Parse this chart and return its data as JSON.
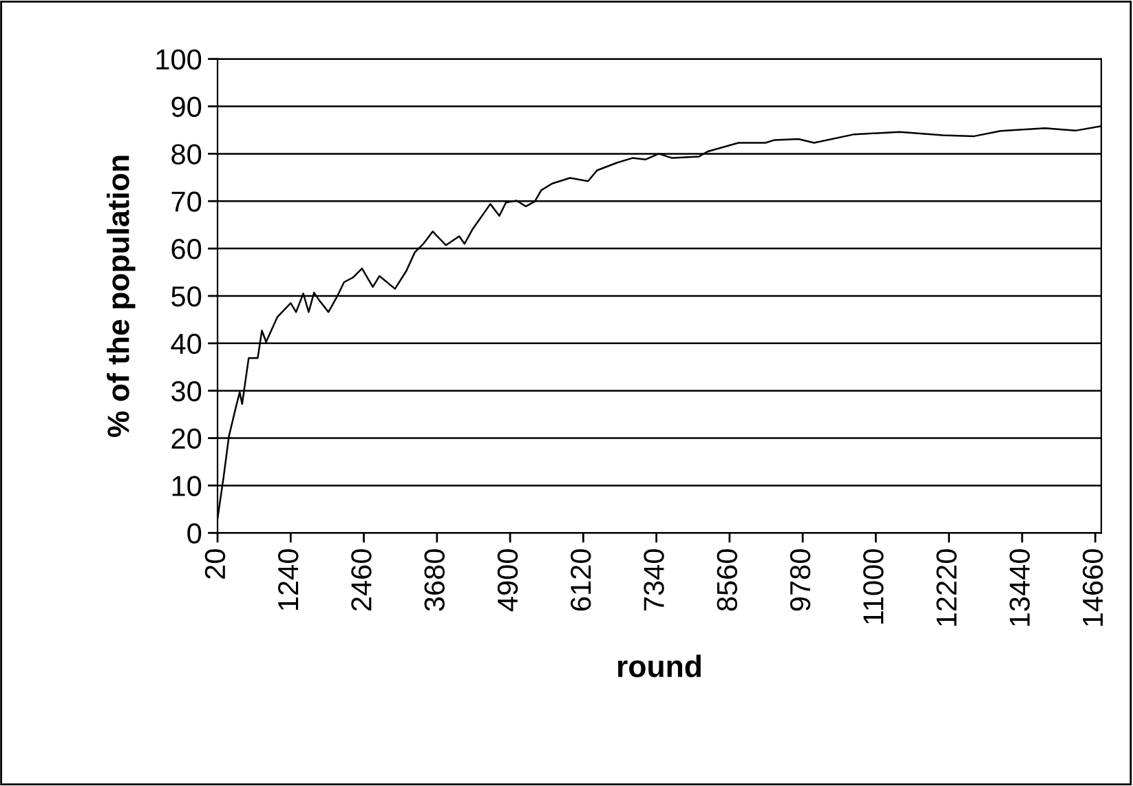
{
  "chart_data": {
    "type": "line",
    "xlabel": "round",
    "ylabel": "% of the population",
    "x": [
      20,
      120,
      210,
      320,
      390,
      430,
      540,
      690,
      760,
      830,
      1020,
      1240,
      1330,
      1450,
      1540,
      1630,
      1720,
      1870,
      2020,
      2130,
      2280,
      2430,
      2610,
      2720,
      2980,
      3170,
      3310,
      3460,
      3610,
      3830,
      4050,
      4140,
      4270,
      4570,
      4720,
      4830,
      5010,
      5160,
      5310,
      5420,
      5600,
      5900,
      6200,
      6350,
      6680,
      6940,
      7160,
      7380,
      7600,
      8050,
      8200,
      8710,
      9160,
      9310,
      9710,
      9970,
      10640,
      11400,
      12120,
      12640,
      13080,
      13820,
      14340,
      14750
    ],
    "series": [
      {
        "color": "#000000",
        "values": [
          3.0,
          11.7,
          20.4,
          26.2,
          29.7,
          27.2,
          36.9,
          36.9,
          42.7,
          40.3,
          45.6,
          48.5,
          46.6,
          50.5,
          46.6,
          50.7,
          49.0,
          46.6,
          50.0,
          52.9,
          53.9,
          55.8,
          51.9,
          54.2,
          51.5,
          55.3,
          59.2,
          61.1,
          63.6,
          60.7,
          62.6,
          61.0,
          64.0,
          69.4,
          66.9,
          69.7,
          70.1,
          68.9,
          69.9,
          72.3,
          73.7,
          74.9,
          74.2,
          76.5,
          78.1,
          79.1,
          78.8,
          80.0,
          79.1,
          79.4,
          80.5,
          82.3,
          82.3,
          82.9,
          83.1,
          82.3,
          84.1,
          84.6,
          83.9,
          83.7,
          84.8,
          85.4,
          84.9,
          85.8
        ]
      }
    ],
    "xlim": [
      20,
      14760
    ],
    "xticks": [
      20,
      1240,
      2460,
      3680,
      4900,
      6120,
      7340,
      8560,
      9780,
      11000,
      12220,
      13440,
      14660
    ],
    "ylim": [
      0,
      100
    ],
    "yticks": [
      0,
      10,
      20,
      30,
      40,
      50,
      60,
      70,
      80,
      90,
      100
    ],
    "grid": "y",
    "legend": false,
    "marker": "none",
    "line_style": "solid"
  }
}
